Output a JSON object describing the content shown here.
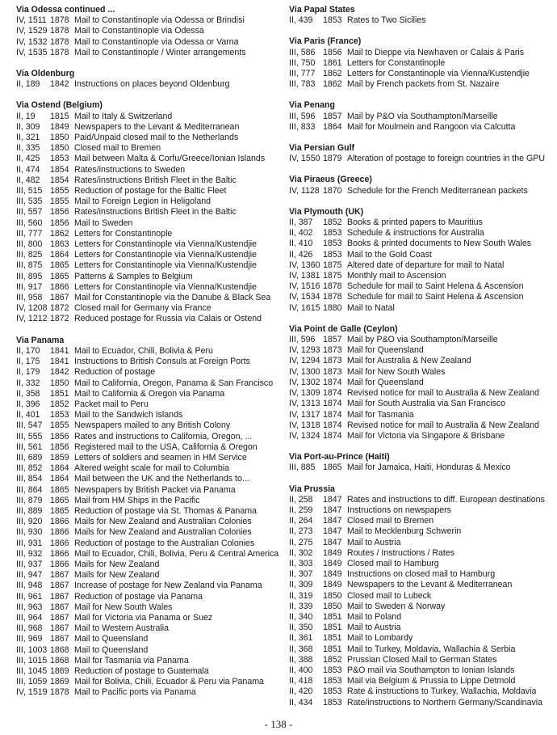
{
  "columns": [
    {
      "sections": [
        {
          "title": "Via Odessa continued ...",
          "entries": [
            [
              "IV, 1511",
              "1878",
              "Mail to Constantinople via Odessa or Brindisi"
            ],
            [
              "IV, 1529",
              "1878",
              "Mail to Constantinople via Odessa"
            ],
            [
              "IV, 1532",
              "1878",
              "Mail to Constantinople via Odessa or Varna"
            ],
            [
              "IV, 1535",
              "1878",
              "Mail to Constantinople / Winter arrangements"
            ]
          ]
        },
        {
          "title": "Via Oldenburg",
          "entries": [
            [
              "II, 189",
              "1842",
              "Instructions on places beyond Oldenburg"
            ]
          ]
        },
        {
          "title": "Via Ostend (Belgium)",
          "entries": [
            [
              "II, 19",
              "1815",
              "Mail to Italy & Switzerland"
            ],
            [
              "II, 309",
              "1849",
              "Newspapers to the Levant & Mediterranean"
            ],
            [
              "II, 321",
              "1850",
              "Paid/Unpaid closed mail to the Netherlands"
            ],
            [
              "II, 335",
              "1850",
              "Closed mail to Bremen"
            ],
            [
              "II, 425",
              "1853",
              "Mail between Malta & Corfu/Greece/Ionian Islands"
            ],
            [
              "II, 474",
              "1854",
              "Rates/instructions to Sweden"
            ],
            [
              "II, 482",
              "1854",
              "Rates/instructions British Fleet in the Baltic"
            ],
            [
              "III, 515",
              "1855",
              "Reduction of postage for the Baltic Fleet"
            ],
            [
              "III, 535",
              "1855",
              "Mail to Foreign Legion in Heligoland"
            ],
            [
              "III, 557",
              "1856",
              "Rates/instructions British Fleet in the Baltic"
            ],
            [
              "III, 560",
              "1856",
              "Mail to Sweden"
            ],
            [
              "III, 777",
              "1862",
              "Letters for Constantinople"
            ],
            [
              "III, 800",
              "1863",
              "Letters for Constantinople via Vienna/Kustendjie"
            ],
            [
              "III, 825",
              "1864",
              "Letters for Constantinople via Vienna/Kustendjie"
            ],
            [
              "III, 875",
              "1865",
              "Letters for Constantinople via Vienna/Kustendjie"
            ],
            [
              "III, 895",
              "1865",
              "Patterns & Samples to Belgium"
            ],
            [
              "III, 917",
              "1866",
              "Letters for Constantinople via Vienna/Kustendjie"
            ],
            [
              "III, 958",
              "1867",
              "Mail for Constantinople via the Danube & Black Sea"
            ],
            [
              "IV, 1208",
              "1872",
              "Closed mail for Germany via France"
            ],
            [
              "IV, 1212",
              "1872",
              "Reduced postage for Russia via Calais or Ostend"
            ]
          ]
        },
        {
          "title": "Via Panama",
          "entries": [
            [
              "II, 170",
              "1841",
              "Mail to Ecuador, Chili, Bolivia & Peru"
            ],
            [
              "II, 175",
              "1841",
              "Instructions to British Consuls at Foreign Ports"
            ],
            [
              "II, 179",
              "1842",
              "Reduction of postage"
            ],
            [
              "II, 332",
              "1850",
              "Mail to California, Oregon, Panama & San Francisco"
            ],
            [
              "II, 358",
              "1851",
              "Mail to California & Oregon via Panama"
            ],
            [
              "II, 396",
              "1852",
              "Packet mail to Peru"
            ],
            [
              "II, 401",
              "1853",
              "Mail to the Sandwich Islands"
            ],
            [
              "III, 547",
              "1855",
              "Newspapers mailed to any British Colony"
            ],
            [
              "III, 555",
              "1856",
              "Rates and instructions to California, Oregon, ..."
            ],
            [
              "III, 561",
              "1856",
              "Registered mail to the USA, California & Oregon"
            ],
            [
              "III, 689",
              "1859",
              "Letters of soldiers and seamen in HM Service"
            ],
            [
              "III, 852",
              "1864",
              "Altered weight scale for mail to Columbia"
            ],
            [
              "III, 854",
              "1864",
              "Mail between the UK and the Netherlands to..."
            ],
            [
              "III, 864",
              "1865",
              "Newspapers by British Packet via Panama"
            ],
            [
              "III, 879",
              "1865",
              "Mail from HM Ships in the Pacific"
            ],
            [
              "III, 889",
              "1865",
              "Reduction of postage via St. Thomas & Panama"
            ],
            [
              "III, 920",
              "1866",
              "Mails for New Zealand and Australian Colonies"
            ],
            [
              "III, 930",
              "1866",
              "Mails for New Zealand and Australian Colonies"
            ],
            [
              "III, 931",
              "1866",
              "Reduction of postage to the Australian Colonies"
            ],
            [
              "III, 932",
              "1866",
              "Mail to Ecuador, Chili, Bolivia, Peru & Central America"
            ],
            [
              "III, 937",
              "1866",
              "Mails for New Zealand"
            ],
            [
              "III, 947",
              "1867",
              "Mails for New Zealand"
            ],
            [
              "III, 948",
              "1867",
              "Increase of postage for New Zealand via Panama"
            ],
            [
              "III, 961",
              "1867",
              "Reduction of postage via Panama"
            ],
            [
              "III, 963",
              "1867",
              "Mail for New South Wales"
            ],
            [
              "III, 964",
              "1867",
              "Mail for Victoria via Panama or Suez"
            ],
            [
              "III, 968",
              "1867",
              "Mail to Western Australia"
            ],
            [
              "III, 969",
              "1867",
              "Mail to Queensland"
            ],
            [
              "III, 1003",
              "1868",
              "Mail to Queensland"
            ],
            [
              "III, 1015",
              "1868",
              "Mail for Tasmania via Panama"
            ],
            [
              "III, 1045",
              "1869",
              "Reduction of postage to Guatemala"
            ],
            [
              "III, 1059",
              "1869",
              "Mail for Bolivia, Chili, Ecuador & Peru via Panama"
            ],
            [
              "IV, 1519",
              "1878",
              "Mail to Pacific ports via Panama"
            ]
          ]
        }
      ]
    },
    {
      "sections": [
        {
          "title": "Via Papal States",
          "entries": [
            [
              "II, 439",
              "1853",
              "Rates to Two Sicilies"
            ]
          ]
        },
        {
          "title": "Via Paris (France)",
          "entries": [
            [
              "III, 586",
              "1856",
              "Mail to Dieppe via Newhaven or Calais & Paris"
            ],
            [
              "III, 750",
              "1861",
              "Letters for Constantinople"
            ],
            [
              "III, 777",
              "1862",
              "Letters for Constantinople via Vienna/Kustendjie"
            ],
            [
              "III, 783",
              "1862",
              "Mail by French packets from St. Nazaire"
            ]
          ]
        },
        {
          "title": "Via Penang",
          "entries": [
            [
              "III, 596",
              "1857",
              "Mail by P&O via Southampton/Marseille"
            ],
            [
              "III, 833",
              "1864",
              "Mail for Moulmein and Rangoon via Calcutta"
            ]
          ]
        },
        {
          "title": "Via Persian Gulf",
          "entries": [
            [
              "IV, 1550",
              "1879",
              "Alteration of postage to foreign countries in the GPU"
            ]
          ]
        },
        {
          "title": "Via Piraeus (Greece)",
          "entries": [
            [
              "IV, 1128",
              "1870",
              "Schedule for the French Mediterranean packets"
            ]
          ]
        },
        {
          "title": "Via Plymouth (UK)",
          "entries": [
            [
              "II, 387",
              "1852",
              "Books & printed papers to Mauritius"
            ],
            [
              "II, 402",
              "1853",
              "Schedule & instructions for Australia"
            ],
            [
              "II, 410",
              "1853",
              "Books & printed documents to New South Wales"
            ],
            [
              "II, 426",
              "1853",
              "Mail to the Gold Coast"
            ],
            [
              "IV, 1360",
              "1875",
              "Altered date of departure for mail to Natal"
            ],
            [
              "IV, 1381",
              "1875",
              "Monthly mail to Ascension"
            ],
            [
              "IV, 1516",
              "1878",
              "Schedule for mail to Saint Helena & Ascension"
            ],
            [
              "IV, 1534",
              "1878",
              "Schedule for mail to Saint Helena & Ascension"
            ],
            [
              "IV, 1615",
              "1880",
              "Mail to Natal"
            ]
          ]
        },
        {
          "title": "Via Point de Galle (Ceylon)",
          "entries": [
            [
              "III, 596",
              "1857",
              "Mail by P&O via Southampton/Marseille"
            ],
            [
              "IV, 1293",
              "1873",
              "Mail for Queensland"
            ],
            [
              "IV, 1294",
              "1873",
              "Mail for Australia & New Zealand"
            ],
            [
              "IV, 1300",
              "1873",
              "Mail for New South Wales"
            ],
            [
              "IV, 1302",
              "1874",
              "Mail for Queensland"
            ],
            [
              "IV, 1309",
              "1874",
              "Revised notice for mail to Australia & New Zealand"
            ],
            [
              "IV, 1313",
              "1874",
              "Mail for South Australia via San Francisco"
            ],
            [
              "IV, 1317",
              "1874",
              "Mail for Tasmania"
            ],
            [
              "IV, 1318",
              "1874",
              "Revised notice for mail to Australia & New Zealand"
            ],
            [
              "IV, 1324",
              "1874",
              "Mail for Victoria via Singapore & Brisbane"
            ]
          ]
        },
        {
          "title": "Via Port-au-Prince (Haiti)",
          "entries": [
            [
              "III, 885",
              "1865",
              "Mail for Jamaica, Haiti, Honduras & Mexico"
            ]
          ]
        },
        {
          "title": "Via Prussia",
          "entries": [
            [
              "II, 258",
              "1847",
              "Rates and instructions to diff. European destinations"
            ],
            [
              "II, 259",
              "1847",
              "Instructions on newspapers"
            ],
            [
              "II, 264",
              "1847",
              "Closed mail to Bremen"
            ],
            [
              "II, 273",
              "1847",
              "Mail to Mecklenburg Schwerin"
            ],
            [
              "II, 275",
              "1847",
              "Mail to Austria"
            ],
            [
              "II, 302",
              "1849",
              "Routes / Instructions / Rates"
            ],
            [
              "II, 303",
              "1849",
              "Closed mail to Hamburg"
            ],
            [
              "II, 307",
              "1849",
              "Instructions on closed mail to Hamburg"
            ],
            [
              "II, 309",
              "1849",
              "Newspapers to the Levant & Mediterranean"
            ],
            [
              "II, 319",
              "1850",
              "Closed mail to Lubeck"
            ],
            [
              "II, 339",
              "1850",
              "Mail to Sweden & Norway"
            ],
            [
              "II, 340",
              "1851",
              "Mail to Poland"
            ],
            [
              "II, 350",
              "1851",
              "Mail to Austria"
            ],
            [
              "II, 361",
              "1851",
              "Mail to Lombardy"
            ],
            [
              "II, 368",
              "1851",
              "Mail to Turkey, Moldavia, Wallachia & Serbia"
            ],
            [
              "II, 388",
              "1852",
              "Prussian Closed Mail to German States"
            ],
            [
              "II, 400",
              "1853",
              "P&O mail via Southampton to Ionian Islands"
            ],
            [
              "II, 418",
              "1853",
              "Mail via Belgium & Prussia to Lippe Detmold"
            ],
            [
              "II, 420",
              "1853",
              "Rate & instructions to Turkey, Wallachia, Moldavia"
            ],
            [
              "II, 434",
              "1853",
              "Rate/instructions to Northern Germany/Scandinavia"
            ]
          ]
        }
      ]
    }
  ],
  "page_number": "- 138 -"
}
